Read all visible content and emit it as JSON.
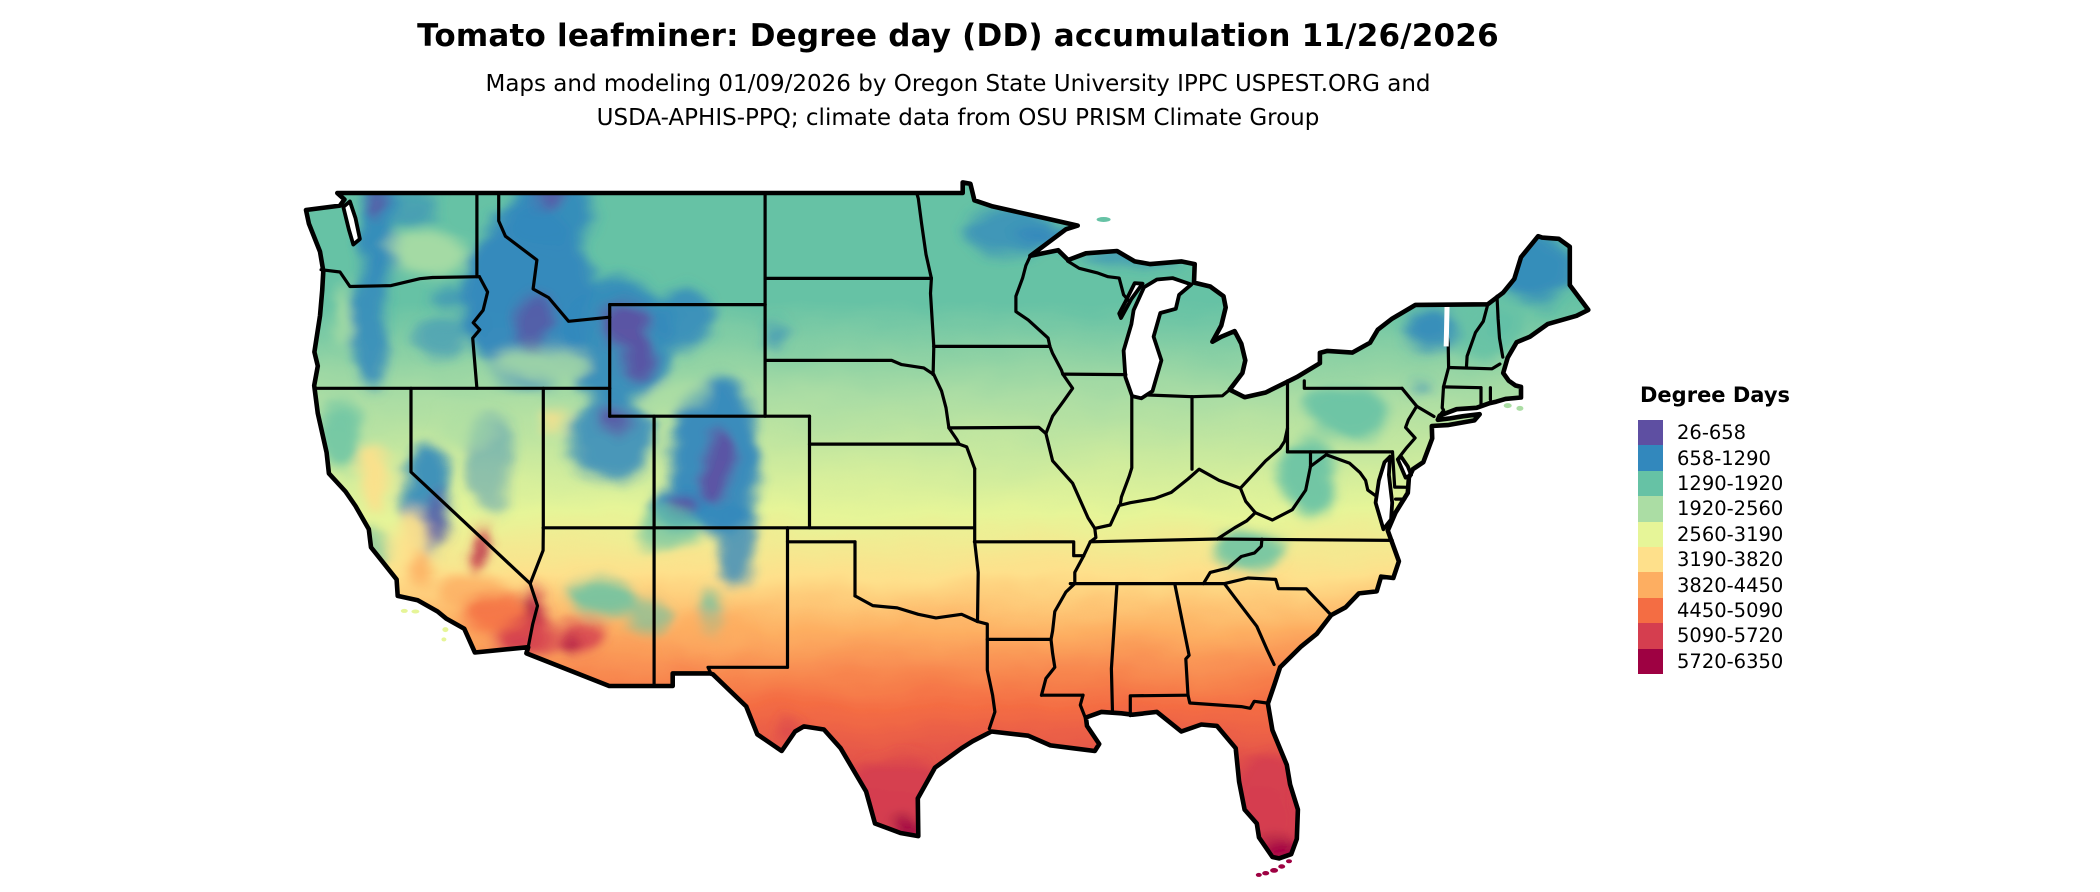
{
  "title": "Tomato leafminer: Degree day (DD) accumulation 11/26/2026",
  "subtitle": {
    "line1": "Maps and modeling 01/09/2026 by Oregon State University IPPC USPEST.ORG and",
    "line2": "USDA-APHIS-PPQ; climate data from OSU PRISM Climate Group"
  },
  "legend": {
    "title": "Degree Days",
    "entries": [
      {
        "label": "26-658",
        "color": "#5e4fa2"
      },
      {
        "label": "658-1290",
        "color": "#3288bd"
      },
      {
        "label": "1290-1920",
        "color": "#66c2a5"
      },
      {
        "label": "1920-2560",
        "color": "#abdda4"
      },
      {
        "label": "2560-3190",
        "color": "#e6f598"
      },
      {
        "label": "3190-3820",
        "color": "#fee08b"
      },
      {
        "label": "3820-4450",
        "color": "#fdae61"
      },
      {
        "label": "4450-5090",
        "color": "#f46d43"
      },
      {
        "label": "5090-5720",
        "color": "#d53e4f"
      },
      {
        "label": "5720-6350",
        "color": "#9e0142"
      }
    ]
  },
  "map": {
    "region": "Contiguous United States",
    "value_name": "Degree Days",
    "value_min": 26,
    "value_max": 6350,
    "num_classes": 10,
    "border_color": "#000000",
    "background_color": "#ffffff"
  }
}
